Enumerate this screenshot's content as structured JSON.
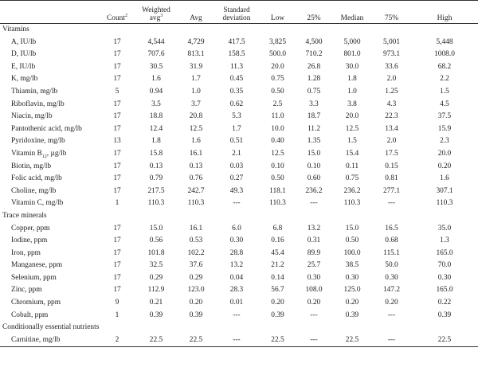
{
  "headers": [
    {
      "key": "label",
      "text": "",
      "sup": ""
    },
    {
      "key": "count",
      "text": "Count",
      "sup": "2"
    },
    {
      "key": "wavg",
      "text": "Weighted avg",
      "sup": "3"
    },
    {
      "key": "avg",
      "text": "Avg",
      "sup": ""
    },
    {
      "key": "sd",
      "text": "Standard deviation",
      "sup": ""
    },
    {
      "key": "low",
      "text": "Low",
      "sup": ""
    },
    {
      "key": "p25",
      "text": "25%",
      "sup": ""
    },
    {
      "key": "median",
      "text": "Median",
      "sup": ""
    },
    {
      "key": "p75",
      "text": "75%",
      "sup": ""
    },
    {
      "key": "high",
      "text": "High",
      "sup": ""
    }
  ],
  "sections": [
    {
      "title": "Vitamins",
      "rows": [
        {
          "label": "A, IU/lb",
          "values": [
            "17",
            "4,544",
            "4,729",
            "417.5",
            "3,825",
            "4,500",
            "5,000",
            "5,001",
            "5,448"
          ]
        },
        {
          "label": "D, IU/lb",
          "values": [
            "17",
            "707.6",
            "813.1",
            "158.5",
            "500.0",
            "710.2",
            "801.0",
            "973.1",
            "1008.0"
          ]
        },
        {
          "label": "E, IU/lb",
          "values": [
            "17",
            "30.5",
            "31.9",
            "11.3",
            "20.0",
            "26.8",
            "30.0",
            "33.6",
            "68.2"
          ]
        },
        {
          "label": "K, mg/lb",
          "values": [
            "17",
            "1.6",
            "1.7",
            "0.45",
            "0.75",
            "1.28",
            "1.8",
            "2.0",
            "2.2"
          ]
        },
        {
          "label": "Thiamin, mg/lb",
          "values": [
            "5",
            "0.94",
            "1.0",
            "0.35",
            "0.50",
            "0.75",
            "1.0",
            "1.25",
            "1.5"
          ]
        },
        {
          "label": "Riboflavin, mg/lb",
          "values": [
            "17",
            "3.5",
            "3.7",
            "0.62",
            "2.5",
            "3.3",
            "3.8",
            "4.3",
            "4.5"
          ]
        },
        {
          "label": "Niacin, mg/lb",
          "values": [
            "17",
            "18.8",
            "20.8",
            "5.3",
            "11.0",
            "18.7",
            "20.0",
            "22.3",
            "37.5"
          ]
        },
        {
          "label": "Pantothenic acid, mg/lb",
          "values": [
            "17",
            "12.4",
            "12.5",
            "1.7",
            "10.0",
            "11.2",
            "12.5",
            "13.4",
            "15.9"
          ]
        },
        {
          "label": "Pyridoxine, mg/lb",
          "values": [
            "13",
            "1.8",
            "1.6",
            "0.51",
            "0.40",
            "1.35",
            "1.5",
            "2.0",
            "2.3"
          ]
        },
        {
          "label": "Vitamin B, µg/lb",
          "sub": "12",
          "values": [
            "17",
            "15.8",
            "16.1",
            "2.1",
            "12.5",
            "15.0",
            "15.4",
            "17.5",
            "20.0"
          ]
        },
        {
          "label": "Biotin, mg/lb",
          "values": [
            "17",
            "0.13",
            "0.13",
            "0.03",
            "0.10",
            "0.10",
            "0.11",
            "0.15",
            "0.20"
          ]
        },
        {
          "label": "Folic acid, mg/lb",
          "values": [
            "17",
            "0.79",
            "0.76",
            "0.27",
            "0.50",
            "0.60",
            "0.75",
            "0.81",
            "1.6"
          ]
        },
        {
          "label": "Choline, mg/lb",
          "values": [
            "17",
            "217.5",
            "242.7",
            "49.3",
            "118.1",
            "236.2",
            "236.2",
            "277.1",
            "307.1"
          ]
        },
        {
          "label": "Vitamin C, mg/lb",
          "values": [
            "1",
            "110.3",
            "110.3",
            "---",
            "110.3",
            "---",
            "110.3",
            "---",
            "110.3"
          ]
        }
      ]
    },
    {
      "title": "Trace minerals",
      "rows": [
        {
          "label": "Copper, ppm",
          "values": [
            "17",
            "15.0",
            "16.1",
            "6.0",
            "6.8",
            "13.2",
            "15.0",
            "16.5",
            "35.0"
          ]
        },
        {
          "label": "Iodine, ppm",
          "values": [
            "17",
            "0.56",
            "0.53",
            "0.30",
            "0.16",
            "0.31",
            "0.50",
            "0.68",
            "1.3"
          ]
        },
        {
          "label": "Iron, ppm",
          "values": [
            "17",
            "101.8",
            "102.2",
            "28.8",
            "45.4",
            "89.9",
            "100.0",
            "115.1",
            "165.0"
          ]
        },
        {
          "label": "Manganese, ppm",
          "values": [
            "17",
            "32.5",
            "37.6",
            "13.2",
            "21.2",
            "25.7",
            "38.5",
            "50.0",
            "70.0"
          ]
        },
        {
          "label": "Selenium, ppm",
          "values": [
            "17",
            "0.29",
            "0.29",
            "0.04",
            "0.14",
            "0.30",
            "0.30",
            "0.30",
            "0.30"
          ]
        },
        {
          "label": "Zinc, ppm",
          "values": [
            "17",
            "112.9",
            "123.0",
            "28.3",
            "56.7",
            "108.0",
            "125.0",
            "147.2",
            "165.0"
          ]
        },
        {
          "label": "Chromium, ppm",
          "values": [
            "9",
            "0.21",
            "0.20",
            "0.01",
            "0.20",
            "0.20",
            "0.20",
            "0.20",
            "0.22"
          ]
        },
        {
          "label": "Cobalt, ppm",
          "values": [
            "1",
            "0.39",
            "0.39",
            "---",
            "0.39",
            "---",
            "0.39",
            "---",
            "0.39"
          ]
        }
      ]
    },
    {
      "title": "Conditionally essential nutrients",
      "rows": [
        {
          "label": "Carnitine, mg/lb",
          "values": [
            "2",
            "22.5",
            "22.5",
            "---",
            "22.5",
            "---",
            "22.5",
            "---",
            "22.5"
          ]
        }
      ]
    }
  ]
}
